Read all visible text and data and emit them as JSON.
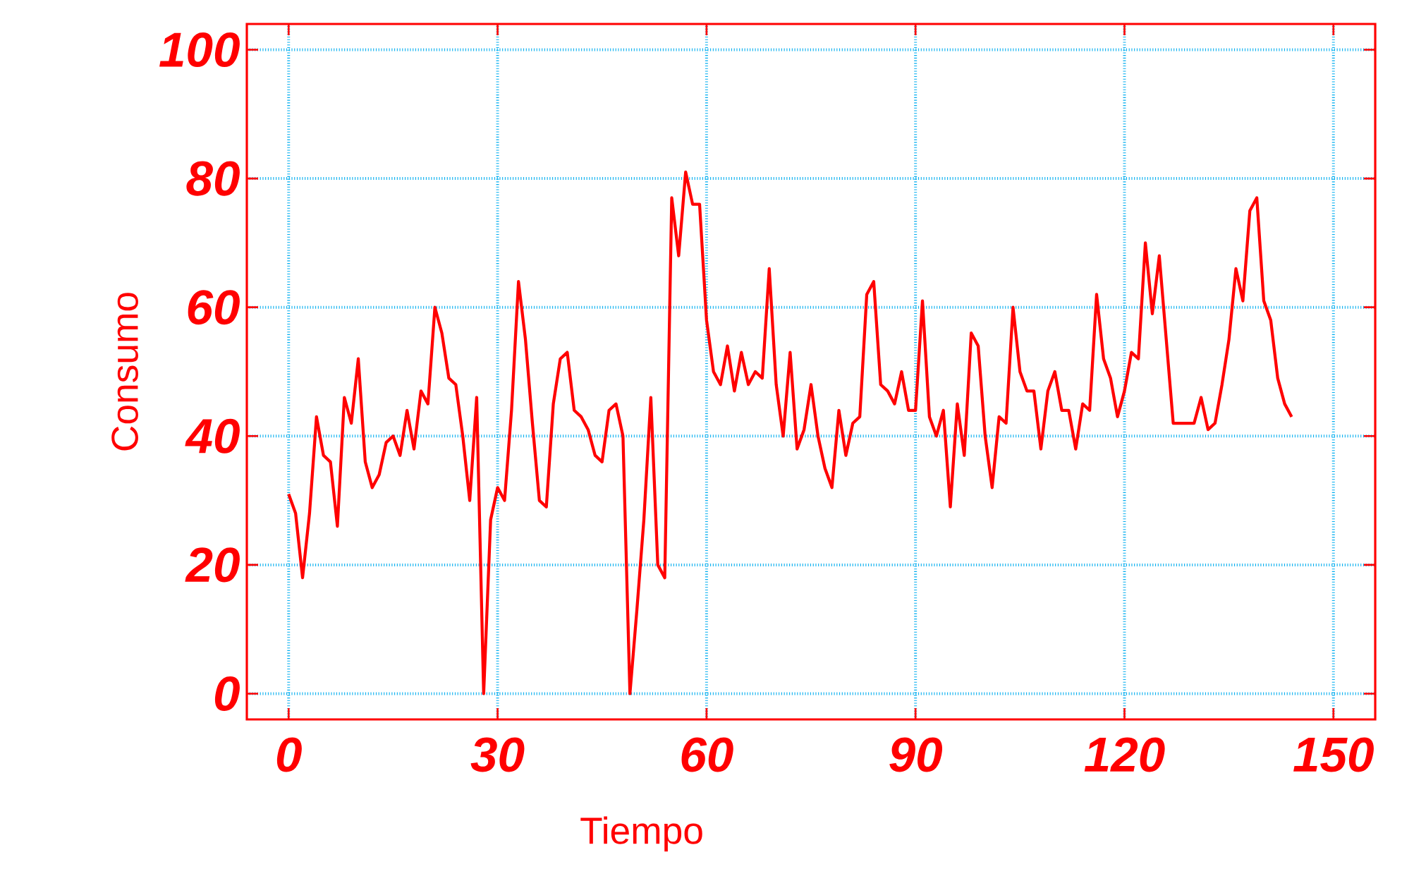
{
  "chart_data": {
    "type": "line",
    "xlabel": "Tiempo",
    "ylabel": "Consumo",
    "xlim": [
      -6,
      156
    ],
    "ylim": [
      -4,
      104
    ],
    "xticks": [
      0,
      30,
      60,
      90,
      120,
      150
    ],
    "yticks": [
      0,
      20,
      40,
      60,
      80,
      100
    ],
    "grid": true,
    "line_style": "solid",
    "series": [
      {
        "color": "#ff0000",
        "x": [
          0,
          1,
          2,
          3,
          4,
          5,
          6,
          7,
          8,
          9,
          10,
          11,
          12,
          13,
          14,
          15,
          16,
          17,
          18,
          19,
          20,
          21,
          22,
          23,
          24,
          25,
          26,
          27,
          28,
          29,
          30,
          31,
          32,
          33,
          34,
          35,
          36,
          37,
          38,
          39,
          40,
          41,
          42,
          43,
          44,
          45,
          46,
          47,
          48,
          49,
          50,
          51,
          52,
          53,
          54,
          55,
          56,
          57,
          58,
          59,
          60,
          61,
          62,
          63,
          64,
          65,
          66,
          67,
          68,
          69,
          70,
          71,
          72,
          73,
          74,
          75,
          76,
          77,
          78,
          79,
          80,
          81,
          82,
          83,
          84,
          85,
          86,
          87,
          88,
          89,
          90,
          91,
          92,
          93,
          94,
          95,
          96,
          97,
          98,
          99,
          100,
          101,
          102,
          103,
          104,
          105,
          106,
          107,
          108,
          109,
          110,
          111,
          112,
          113,
          114,
          115,
          116,
          117,
          118,
          119,
          120,
          121,
          122,
          123,
          124,
          125,
          126,
          127,
          128,
          129,
          130,
          131,
          132,
          133,
          134,
          135,
          136,
          137,
          138,
          139,
          140,
          141,
          142,
          143,
          144
        ],
        "values": [
          31,
          28,
          18,
          28,
          43,
          37,
          36,
          26,
          46,
          42,
          52,
          36,
          32,
          34,
          39,
          40,
          37,
          44,
          38,
          47,
          45,
          60,
          56,
          49,
          48,
          40,
          30,
          46,
          0,
          27,
          32,
          30,
          44,
          64,
          55,
          42,
          30,
          29,
          45,
          52,
          53,
          44,
          43,
          41,
          37,
          36,
          44,
          45,
          40,
          0,
          13,
          27,
          46,
          20,
          18,
          77,
          68,
          81,
          76,
          76,
          58,
          50,
          48,
          54,
          47,
          53,
          48,
          50,
          49,
          66,
          48,
          40,
          53,
          38,
          41,
          48,
          40,
          35,
          32,
          44,
          37,
          42,
          43,
          62,
          64,
          48,
          47,
          45,
          50,
          44,
          44,
          61,
          43,
          40,
          44,
          29,
          45,
          37,
          56,
          54,
          40,
          32,
          43,
          42,
          60,
          50,
          47,
          47,
          38,
          47,
          50,
          44,
          44,
          38,
          45,
          44,
          62,
          52,
          49,
          43,
          47,
          53,
          52,
          70,
          59,
          68,
          55,
          42,
          42,
          42,
          42,
          46,
          41,
          42,
          48,
          55,
          66,
          61,
          75,
          77,
          61,
          58,
          49,
          45,
          43
        ]
      }
    ]
  }
}
